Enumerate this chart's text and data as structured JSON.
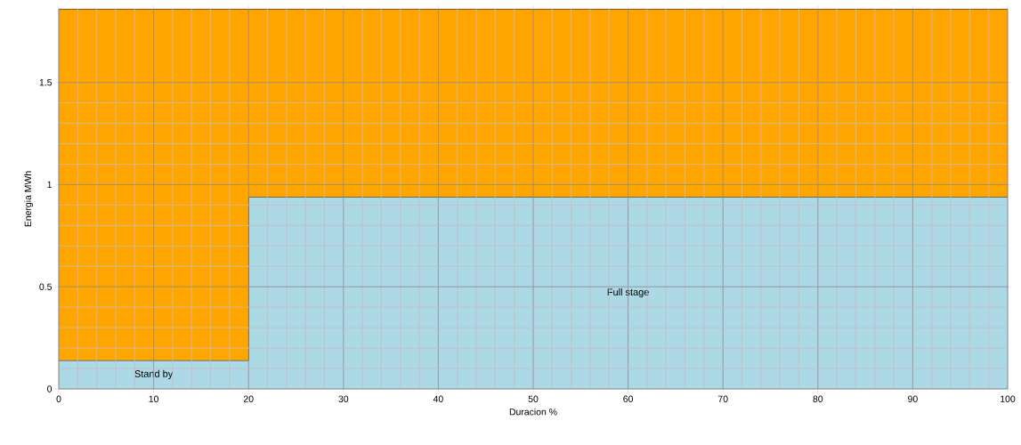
{
  "chart_data": {
    "type": "area",
    "stacked": true,
    "xlabel": "Duracion %",
    "ylabel": "Energia MWh",
    "xlim": [
      0,
      100
    ],
    "ylim": [
      0,
      1.86
    ],
    "xticks": [
      0,
      10,
      20,
      30,
      40,
      50,
      60,
      70,
      80,
      90,
      100
    ],
    "yticks": [
      0,
      0.5,
      1,
      1.5
    ],
    "grid": true,
    "series": [
      {
        "color": "#add8e6",
        "x": [
          0,
          20,
          20,
          100
        ],
        "values": [
          0.14,
          0.14,
          0.94,
          0.94
        ]
      },
      {
        "color": "#ffa500",
        "x": [
          0,
          20,
          20,
          100
        ],
        "values": [
          1.72,
          1.72,
          0.92,
          0.92
        ]
      }
    ],
    "annotations": [
      "Stand by",
      "Full stage"
    ]
  }
}
